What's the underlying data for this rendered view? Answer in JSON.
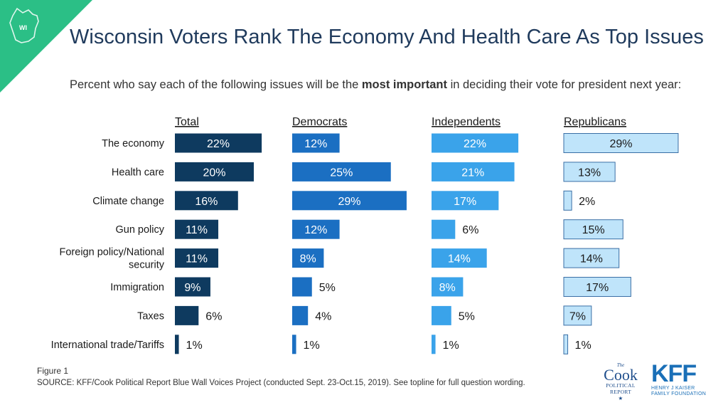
{
  "badge": {
    "state": "WI",
    "color": "#2bbf86"
  },
  "header": {
    "title": "Wisconsin Voters Rank The Economy And Health Care As Top Issues",
    "subtitle_before": "Percent who say each of the following issues will be the ",
    "subtitle_bold": "most important",
    "subtitle_after": " in deciding their vote for president next year:"
  },
  "footer": {
    "figure": "Figure 1",
    "source": "SOURCE: KFF/Cook Political Report Blue Wall Voices Project (conducted Sept. 23-Oct.15, 2019). See topline for full question wording."
  },
  "logos": {
    "cook_top": "The",
    "cook_name": "Cook",
    "cook_line1": "POLITICAL",
    "cook_line2": "REPORT",
    "cook_star": "★",
    "kff_name": "KFF",
    "kff_line1": "HENRY J KAISER",
    "kff_line2": "FAMILY FOUNDATION"
  },
  "chart_data": {
    "type": "bar",
    "orientation": "horizontal",
    "categories": [
      "The economy",
      "Health care",
      "Climate change",
      "Gun policy",
      "Foreign policy/National security",
      "Immigration",
      "Taxes",
      "International trade/Tariffs"
    ],
    "series": [
      {
        "name": "Total",
        "color": "#0e3a5f",
        "values": [
          22,
          20,
          16,
          11,
          11,
          9,
          6,
          1
        ]
      },
      {
        "name": "Democrats",
        "color": "#1b6fc2",
        "values": [
          12,
          25,
          29,
          12,
          8,
          5,
          4,
          1
        ]
      },
      {
        "name": "Independents",
        "color": "#3aa3ea",
        "values": [
          22,
          21,
          17,
          6,
          14,
          8,
          5,
          1
        ]
      },
      {
        "name": "Republicans",
        "color": "#bfe4fa",
        "values": [
          29,
          13,
          2,
          15,
          14,
          17,
          7,
          1
        ]
      }
    ],
    "value_suffix": "%"
  }
}
